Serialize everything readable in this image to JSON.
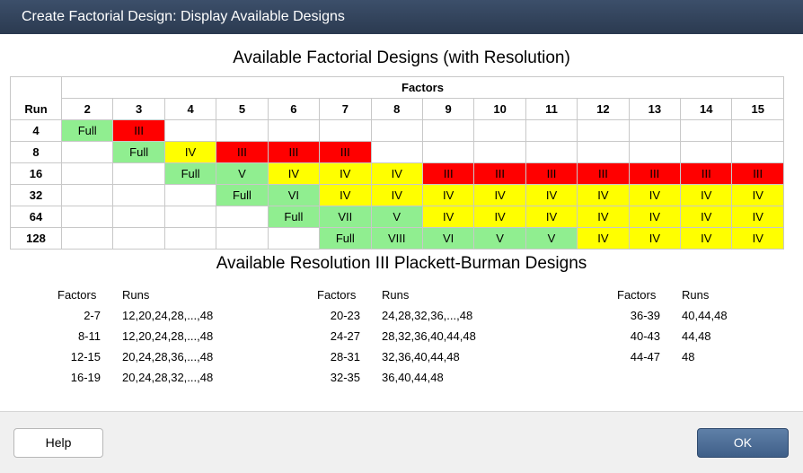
{
  "window": {
    "title": "Create Factorial Design: Display Available Designs"
  },
  "factorial": {
    "heading": "Available Factorial Designs (with Resolution)",
    "factors_label": "Factors",
    "run_label": "Run",
    "factor_columns": [
      "2",
      "3",
      "4",
      "5",
      "6",
      "7",
      "8",
      "9",
      "10",
      "11",
      "12",
      "13",
      "14",
      "15"
    ],
    "rows": [
      {
        "run": "4",
        "cells": [
          "Full",
          "III",
          "",
          "",
          "",
          "",
          "",
          "",
          "",
          "",
          "",
          "",
          "",
          ""
        ]
      },
      {
        "run": "8",
        "cells": [
          "",
          "Full",
          "IV",
          "III",
          "III",
          "III",
          "",
          "",
          "",
          "",
          "",
          "",
          "",
          ""
        ]
      },
      {
        "run": "16",
        "cells": [
          "",
          "",
          "Full",
          "V",
          "IV",
          "IV",
          "IV",
          "III",
          "III",
          "III",
          "III",
          "III",
          "III",
          "III"
        ]
      },
      {
        "run": "32",
        "cells": [
          "",
          "",
          "",
          "Full",
          "VI",
          "IV",
          "IV",
          "IV",
          "IV",
          "IV",
          "IV",
          "IV",
          "IV",
          "IV"
        ]
      },
      {
        "run": "64",
        "cells": [
          "",
          "",
          "",
          "",
          "Full",
          "VII",
          "V",
          "IV",
          "IV",
          "IV",
          "IV",
          "IV",
          "IV",
          "IV"
        ]
      },
      {
        "run": "128",
        "cells": [
          "",
          "",
          "",
          "",
          "",
          "Full",
          "VIII",
          "VI",
          "V",
          "V",
          "IV",
          "IV",
          "IV",
          "IV"
        ]
      }
    ],
    "colors": {
      "full": "#90ee90",
      "high": "#90ee90",
      "IV": "#ffff00",
      "III": "#ff0000"
    }
  },
  "plackett_burman": {
    "heading": "Available Resolution III Plackett-Burman Designs",
    "factors_header": "Factors",
    "runs_header": "Runs",
    "groups": [
      {
        "rows": [
          {
            "factors": "2-7",
            "runs": "12,20,24,28,...,48"
          },
          {
            "factors": "8-11",
            "runs": "12,20,24,28,...,48"
          },
          {
            "factors": "12-15",
            "runs": "20,24,28,36,...,48"
          },
          {
            "factors": "16-19",
            "runs": "20,24,28,32,...,48"
          }
        ]
      },
      {
        "rows": [
          {
            "factors": "20-23",
            "runs": "24,28,32,36,...,48"
          },
          {
            "factors": "24-27",
            "runs": "28,32,36,40,44,48"
          },
          {
            "factors": "28-31",
            "runs": "32,36,40,44,48"
          },
          {
            "factors": "32-35",
            "runs": "36,40,44,48"
          }
        ]
      },
      {
        "rows": [
          {
            "factors": "36-39",
            "runs": "40,44,48"
          },
          {
            "factors": "40-43",
            "runs": "44,48"
          },
          {
            "factors": "44-47",
            "runs": "48"
          }
        ]
      }
    ]
  },
  "buttons": {
    "help": "Help",
    "ok": "OK"
  }
}
